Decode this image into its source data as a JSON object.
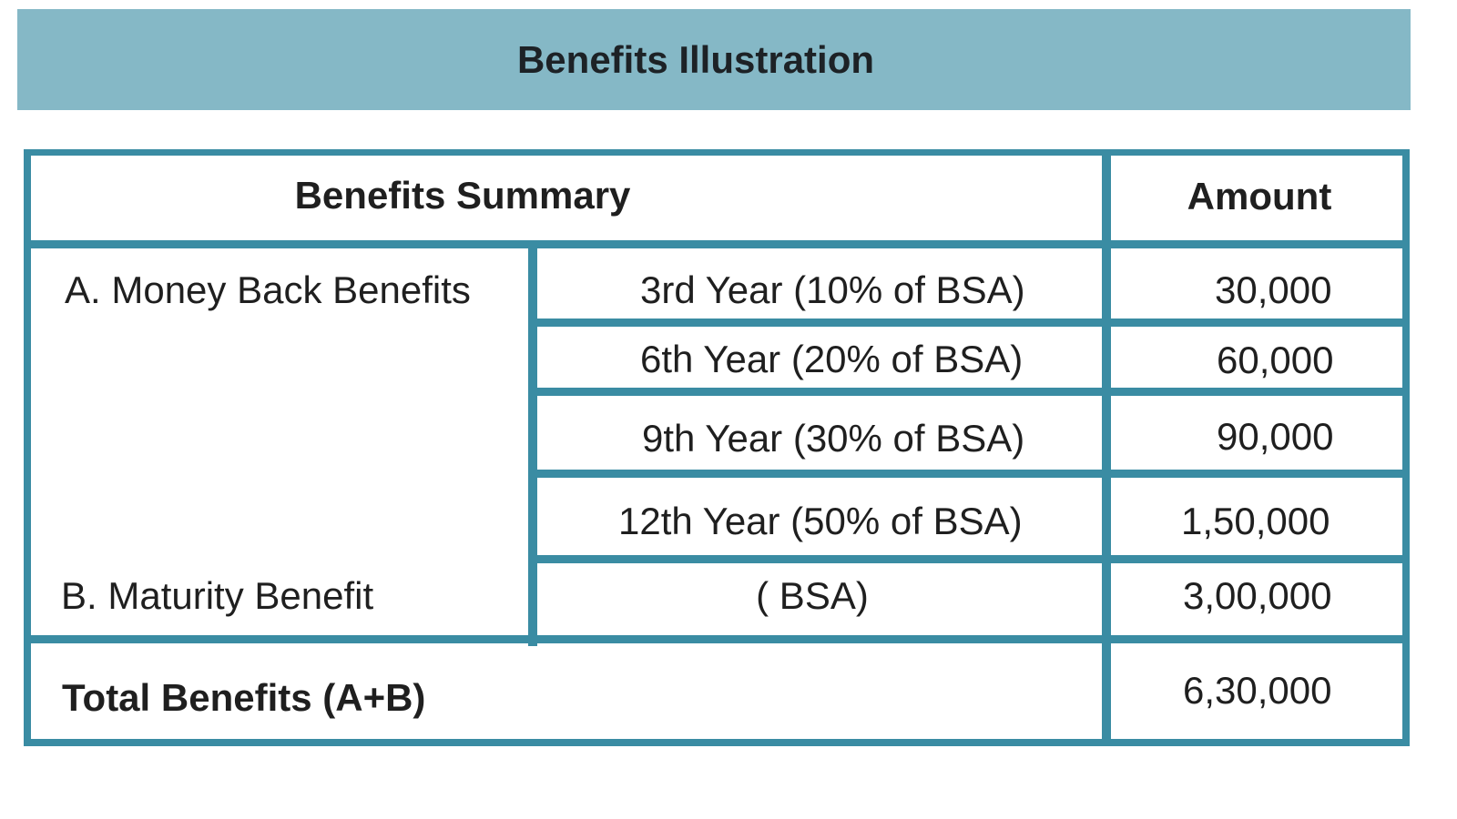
{
  "banner": {
    "title": "Benefits Illustration",
    "background_color": "#85b8c6"
  },
  "table": {
    "border_color": "#3a8ca3",
    "header": {
      "summary_label": "Benefits Summary",
      "amount_label": "Amount"
    },
    "section_a": {
      "label": "A. Money Back Benefits",
      "rows": [
        {
          "description": "3rd Year (10% of BSA)",
          "amount": "30,000"
        },
        {
          "description": "6th Year (20% of BSA)",
          "amount": "60,000"
        },
        {
          "description": "9th Year (30% of BSA)",
          "amount": "90,000"
        },
        {
          "description": "12th Year (50% of BSA)",
          "amount": "1,50,000"
        }
      ]
    },
    "section_b": {
      "label": "B. Maturity Benefit",
      "description": "( BSA)",
      "amount": "3,00,000"
    },
    "total": {
      "label": "Total Benefits (A+B)",
      "amount": "6,30,000"
    }
  }
}
